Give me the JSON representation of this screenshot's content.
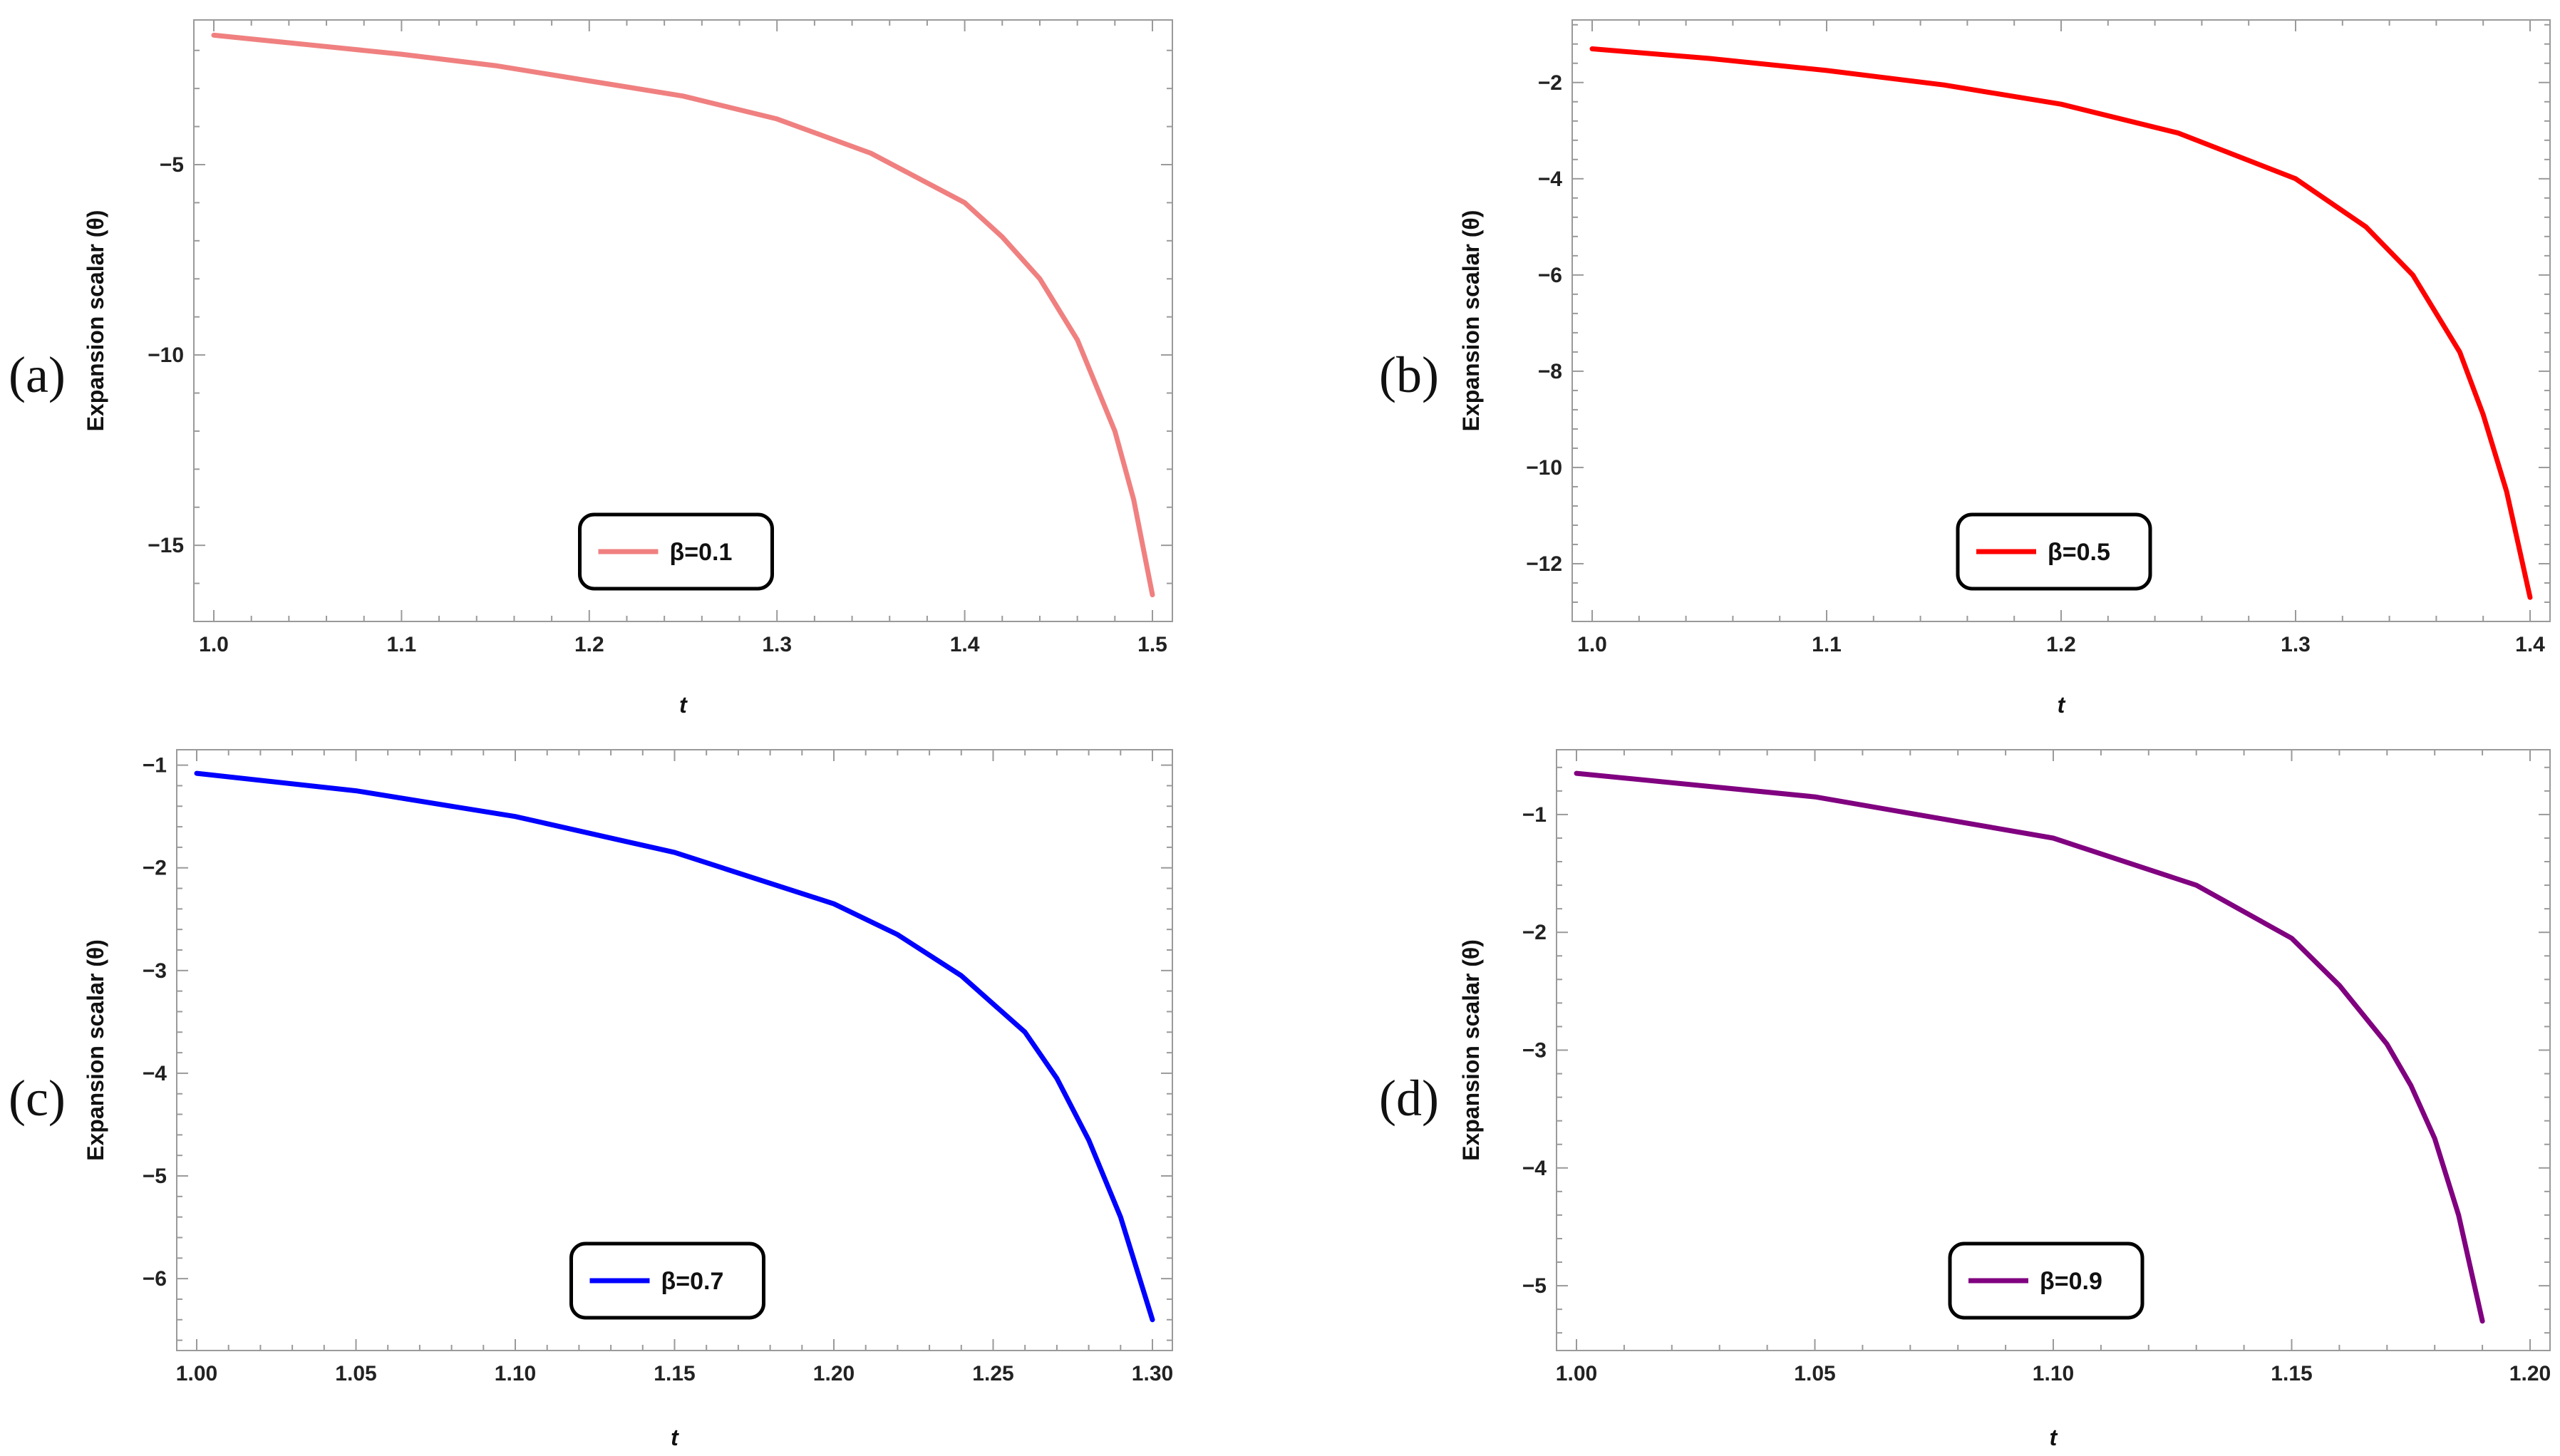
{
  "chart_data": [
    {
      "panel_label": "(a)",
      "type": "line",
      "xlabel": "t",
      "ylabel": "Expansion scalar (θ)",
      "xlim": [
        1.0,
        1.5
      ],
      "ylim": [
        -17,
        -1.2
      ],
      "xticks": [
        1.0,
        1.1,
        1.2,
        1.3,
        1.4,
        1.5
      ],
      "xtick_labels": [
        "1.0",
        "1.1",
        "1.2",
        "1.3",
        "1.4",
        "1.5"
      ],
      "yticks": [
        -5,
        -10,
        -15
      ],
      "ytick_labels": [
        "−5",
        "−10",
        "−15"
      ],
      "grid": false,
      "legend_position": "bottom-center",
      "series": [
        {
          "name": "β=0.1",
          "color": "#f08080",
          "x": [
            1.0,
            1.05,
            1.1,
            1.15,
            1.2,
            1.25,
            1.3,
            1.35,
            1.4,
            1.42,
            1.44,
            1.46,
            1.48,
            1.49,
            1.5
          ],
          "y": [
            -1.6,
            -1.85,
            -2.1,
            -2.4,
            -2.8,
            -3.2,
            -3.8,
            -4.7,
            -6.0,
            -6.9,
            -8.0,
            -9.6,
            -12.0,
            -13.8,
            -16.3
          ]
        }
      ]
    },
    {
      "panel_label": "(b)",
      "type": "line",
      "xlabel": "t",
      "ylabel": "Expansion scalar (θ)",
      "xlim": [
        1.0,
        1.4
      ],
      "ylim": [
        -13.2,
        -0.7
      ],
      "xticks": [
        1.0,
        1.1,
        1.2,
        1.3,
        1.4
      ],
      "xtick_labels": [
        "1.0",
        "1.1",
        "1.2",
        "1.3",
        "1.4"
      ],
      "yticks": [
        -2,
        -4,
        -6,
        -8,
        -10,
        -12
      ],
      "ytick_labels": [
        "−2",
        "−4",
        "−6",
        "−8",
        "−10",
        "−12"
      ],
      "grid": false,
      "legend_position": "bottom-center",
      "series": [
        {
          "name": "β=0.5",
          "color": "#ff0000",
          "x": [
            1.0,
            1.05,
            1.1,
            1.15,
            1.2,
            1.25,
            1.3,
            1.33,
            1.35,
            1.37,
            1.38,
            1.39,
            1.4
          ],
          "y": [
            -1.3,
            -1.5,
            -1.75,
            -2.05,
            -2.45,
            -3.05,
            -4.0,
            -5.0,
            -6.0,
            -7.6,
            -8.9,
            -10.5,
            -12.7
          ]
        }
      ]
    },
    {
      "panel_label": "(c)",
      "type": "line",
      "xlabel": "t",
      "ylabel": "Expansion scalar (θ)",
      "xlim": [
        1.0,
        1.3
      ],
      "ylim": [
        -6.7,
        -0.85
      ],
      "xticks": [
        1.0,
        1.05,
        1.1,
        1.15,
        1.2,
        1.25,
        1.3
      ],
      "xtick_labels": [
        "1.00",
        "1.05",
        "1.10",
        "1.15",
        "1.20",
        "1.25",
        "1.30"
      ],
      "yticks": [
        -1,
        -2,
        -3,
        -4,
        -5,
        -6
      ],
      "ytick_labels": [
        "−1",
        "−2",
        "−3",
        "−4",
        "−5",
        "−6"
      ],
      "grid": false,
      "legend_position": "bottom-center",
      "series": [
        {
          "name": "β=0.7",
          "color": "#0000ff",
          "x": [
            1.0,
            1.05,
            1.1,
            1.15,
            1.2,
            1.22,
            1.24,
            1.26,
            1.27,
            1.28,
            1.29,
            1.3
          ],
          "y": [
            -1.08,
            -1.25,
            -1.5,
            -1.85,
            -2.35,
            -2.65,
            -3.05,
            -3.6,
            -4.05,
            -4.65,
            -5.4,
            -6.4
          ]
        }
      ]
    },
    {
      "panel_label": "(d)",
      "type": "line",
      "xlabel": "t",
      "ylabel": "Expansion scalar (θ)",
      "xlim": [
        1.0,
        1.2
      ],
      "ylim": [
        -5.55,
        -0.45
      ],
      "xticks": [
        1.0,
        1.05,
        1.1,
        1.15,
        1.2
      ],
      "xtick_labels": [
        "1.00",
        "1.05",
        "1.10",
        "1.15",
        "1.20"
      ],
      "yticks": [
        -1,
        -2,
        -3,
        -4,
        -5
      ],
      "ytick_labels": [
        "−1",
        "−2",
        "−3",
        "−4",
        "−5"
      ],
      "grid": false,
      "legend_position": "bottom-center",
      "series": [
        {
          "name": "β=0.9",
          "color": "#800080",
          "x": [
            1.0,
            1.05,
            1.1,
            1.13,
            1.15,
            1.16,
            1.17,
            1.175,
            1.18,
            1.185,
            1.19
          ],
          "y": [
            -0.65,
            -0.85,
            -1.2,
            -1.6,
            -2.05,
            -2.45,
            -2.95,
            -3.3,
            -3.75,
            -4.4,
            -5.3
          ]
        }
      ]
    }
  ]
}
